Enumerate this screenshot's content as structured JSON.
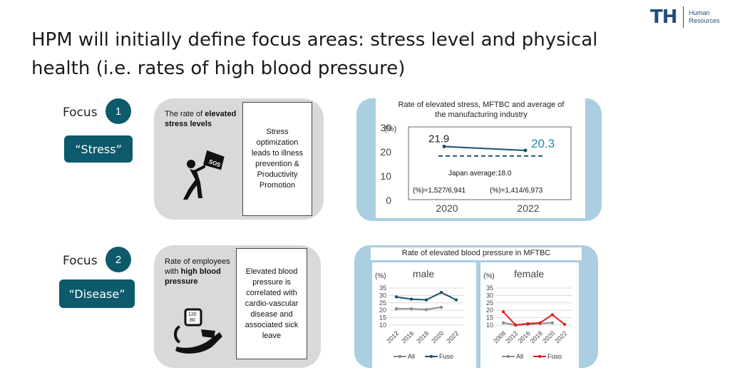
{
  "title": "HPM will initially define focus areas: stress level and physical health (i.e. rates of high blood pressure)",
  "logo": {
    "mark": "TH",
    "line1": "Human",
    "line2": "Resources"
  },
  "focus1": {
    "label": "Focus",
    "number": "1",
    "tag": "“Stress”",
    "head_pre": "The rate of ",
    "head_bold1": "elevated",
    "head_bold2": "stress levels",
    "box_text": "Stress optimization leads to illness prevention & Productivity Promotion"
  },
  "focus2": {
    "label": "Focus",
    "number": "2",
    "tag": "“Disease”",
    "head_pre": "Rate of employees with ",
    "head_bold1": "high blood",
    "head_bold2": "pressure",
    "box_text": "Elevated blood pressure is correlated with cardio-vascular disease and associated sick leave",
    "monitor_text_1": "120",
    "monitor_text_2": "80"
  },
  "icons": {
    "stress": "person-with-sos-flag-icon",
    "disease": "blood-pressure-monitor-icon",
    "sos": "SOS"
  },
  "colors": {
    "teal": "#0c5a6b",
    "stress_line": "#1b5368",
    "accent_value": "#1b8db0",
    "fuso_male": "#1b5368",
    "fuso_female": "#e0201b",
    "all": "#8c8c8c"
  },
  "chart_data": [
    {
      "type": "line",
      "title": "Rate of elevated stress, MFTBC and average of the manufacturing industry",
      "ylabel": "(%)",
      "ylim": [
        0,
        30
      ],
      "yticks": [
        "30",
        "20",
        "10",
        "0"
      ],
      "categories": [
        "2020",
        "2022"
      ],
      "series": [
        {
          "values": [
            21.9,
            20.3
          ]
        }
      ],
      "data_labels": [
        "21.9",
        "20.3"
      ],
      "reference": {
        "label": "Japan average:18.0",
        "value": 18.0
      },
      "notes": [
        "(%)=1,527/6,941",
        "(%)=1,414/6,973"
      ]
    },
    {
      "type": "line",
      "title": "Rate of elevated blood pressure in MFTBC",
      "panels": [
        {
          "subtitle": "male",
          "ylabel": "(%)",
          "ylim": [
            10,
            35
          ],
          "yticks": [
            "35",
            "30",
            "25",
            "20",
            "15",
            "10"
          ],
          "categories": [
            "2012",
            "2016",
            "2018",
            "2020",
            "2022"
          ],
          "series": [
            {
              "name": "All",
              "values": [
                21,
                21,
                20.5,
                22,
                null
              ]
            },
            {
              "name": "Fuso",
              "values": [
                29,
                27.5,
                27,
                32,
                27
              ]
            }
          ]
        },
        {
          "subtitle": "female",
          "ylabel": "(%)",
          "ylim": [
            10,
            35
          ],
          "yticks": [
            "35",
            "30",
            "25",
            "20",
            "15",
            "10"
          ],
          "categories": [
            "2008",
            "2012",
            "2016",
            "2018",
            "2020",
            "2022"
          ],
          "series": [
            {
              "name": "All",
              "values": [
                11.5,
                10,
                10.5,
                11,
                11.5,
                null
              ]
            },
            {
              "name": "Fuso",
              "values": [
                19,
                10,
                11,
                11.5,
                17,
                10.5
              ]
            }
          ]
        }
      ]
    }
  ]
}
